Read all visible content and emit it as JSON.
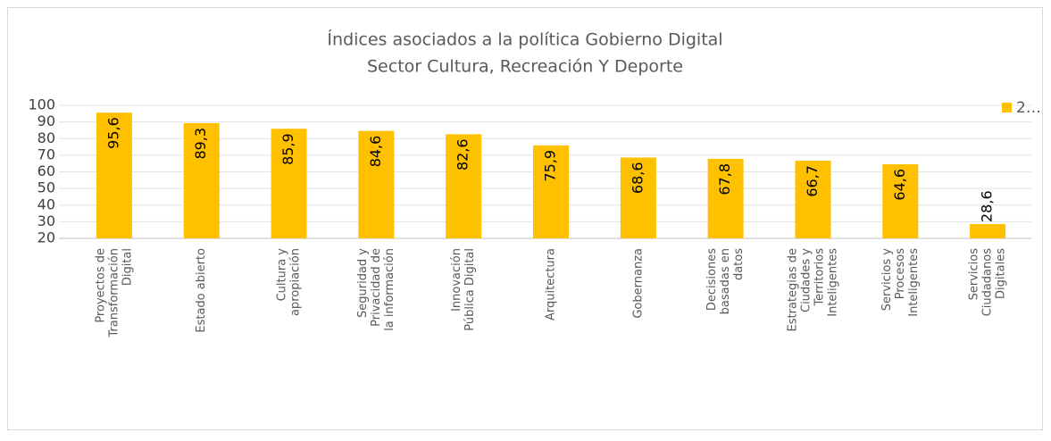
{
  "chart_data": {
    "type": "bar",
    "title": [
      "Índices asociados a la política Gobierno Digital",
      "Sector Cultura, Recreación Y Deporte"
    ],
    "categories": [
      [
        "Proyectos de",
        "Transformación",
        "Digital"
      ],
      [
        "Estado abierto"
      ],
      [
        "Cultura y",
        "apropiación"
      ],
      [
        "Seguridad y",
        "Privacidad de",
        "la información"
      ],
      [
        "Innovación",
        "Pública Digital"
      ],
      [
        "Arquitectura"
      ],
      [
        "Gobernanza"
      ],
      [
        "Decisiones",
        "basadas en",
        "datos"
      ],
      [
        "Estrategias de",
        "Ciudades y",
        "Territorios",
        "Inteligentes"
      ],
      [
        "Servicios y",
        "Procesos",
        "Inteligentes"
      ],
      [
        "Servicios",
        "Ciudadanos",
        "Digitales"
      ]
    ],
    "series": [
      {
        "name": "2…",
        "color": "#ffc000",
        "values": [
          95.6,
          89.3,
          85.9,
          84.6,
          82.6,
          75.9,
          68.6,
          67.8,
          66.7,
          64.6,
          28.6
        ],
        "value_labels": [
          "95,6",
          "89,3",
          "85,9",
          "84,6",
          "82,6",
          "75,9",
          "68,6",
          "67,8",
          "66,7",
          "64,6",
          "28,6"
        ]
      }
    ],
    "ylim": [
      20,
      100
    ],
    "yticks": [
      20,
      30,
      40,
      50,
      60,
      70,
      80,
      90,
      100
    ],
    "grid": true,
    "legend": "top-right"
  }
}
